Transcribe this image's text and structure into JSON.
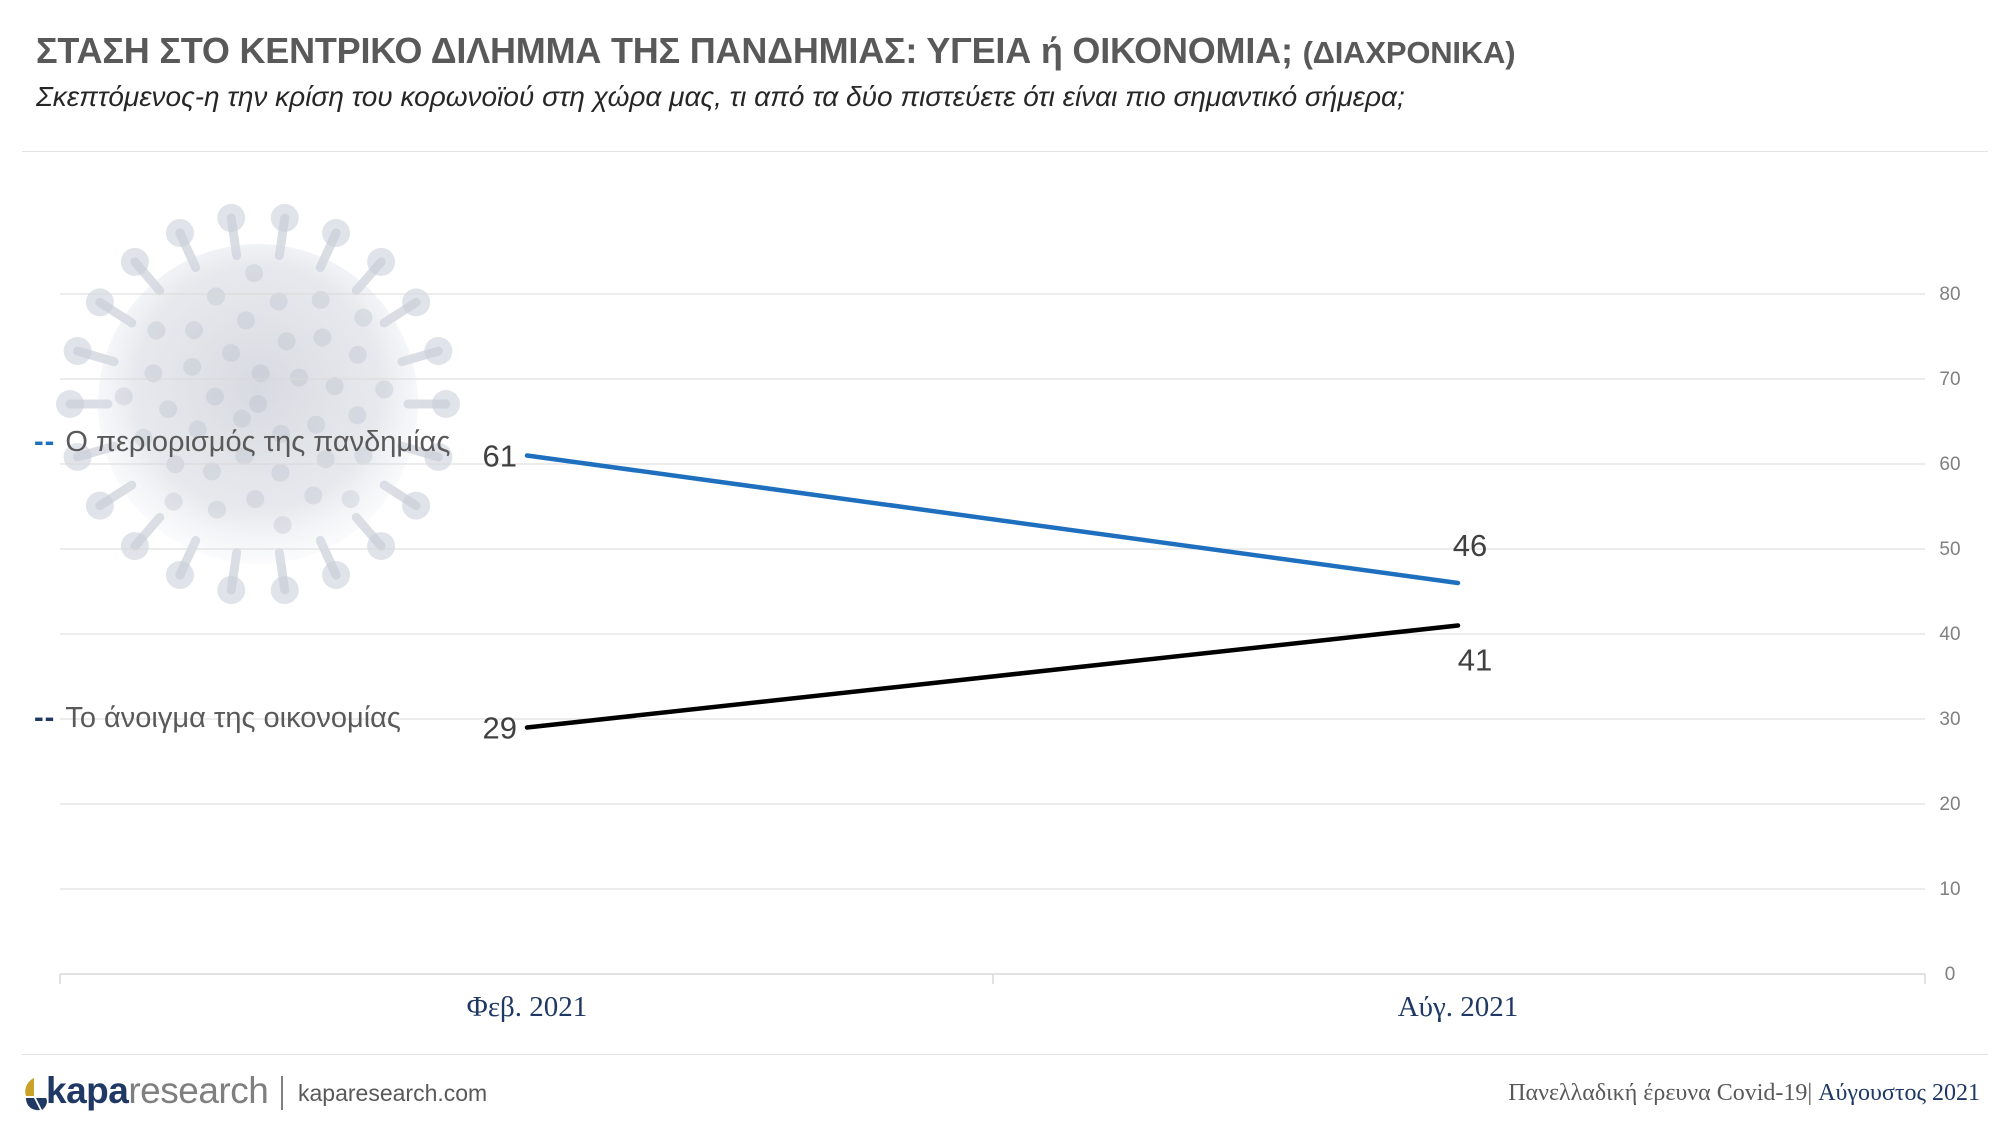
{
  "header": {
    "title": "ΣΤΑΣΗ ΣΤΟ ΚΕΝΤΡΙΚΟ ΔΙΛΗΜΜΑ ΤΗΣ ΠΑΝΔΗΜΙΑΣ: ΥΓΕΙΑ ή ΟΙΚΟΝΟΜΙΑ;",
    "title_suffix": "(ΔΙΑΧΡΟΝΙΚΑ)",
    "subtitle": "Σκεπτόμενος-η την κρίση του κορωνοϊού στη χώρα μας, τι από τα δύο πιστεύετε ότι είναι πιο σημαντικό σήμερα;"
  },
  "legend": {
    "dash": "--",
    "items": [
      {
        "label": "Ο περιορισμός της πανδημίας",
        "color": "#1f6fbf"
      },
      {
        "label": "Το άνοιγμα της οικονομίας",
        "color": "#000000"
      }
    ]
  },
  "chart_data": {
    "type": "line",
    "categories": [
      "Φεβ. 2021",
      "Αύγ. 2021"
    ],
    "series": [
      {
        "name": "Ο περιορισμός της πανδημίας",
        "values": [
          61,
          46
        ],
        "color": "#1f6fbf"
      },
      {
        "name": "Το άνοιγμα της οικονομίας",
        "values": [
          29,
          41
        ],
        "color": "#000000"
      }
    ],
    "ylim": [
      0,
      80
    ],
    "yticks": [
      0,
      10,
      20,
      30,
      40,
      50,
      60,
      70,
      80
    ],
    "y_axis_side": "right",
    "grid": true,
    "data_labels": true,
    "legend_position": "left"
  },
  "footer": {
    "brand_bold": "kapa",
    "brand_rest": "research",
    "website": "kaparesearch.com",
    "survey": "Πανελλαδική έρευνα Covid-19",
    "separator": "|",
    "date": "Αύγουστος 2021"
  },
  "colors": {
    "title": "#595959",
    "grid": "#d9d9d9",
    "axis_text": "#808080",
    "brand_blue": "#1f3864",
    "brand_gold": "#c9a227"
  },
  "watermark_icon": "coronavirus-icon"
}
